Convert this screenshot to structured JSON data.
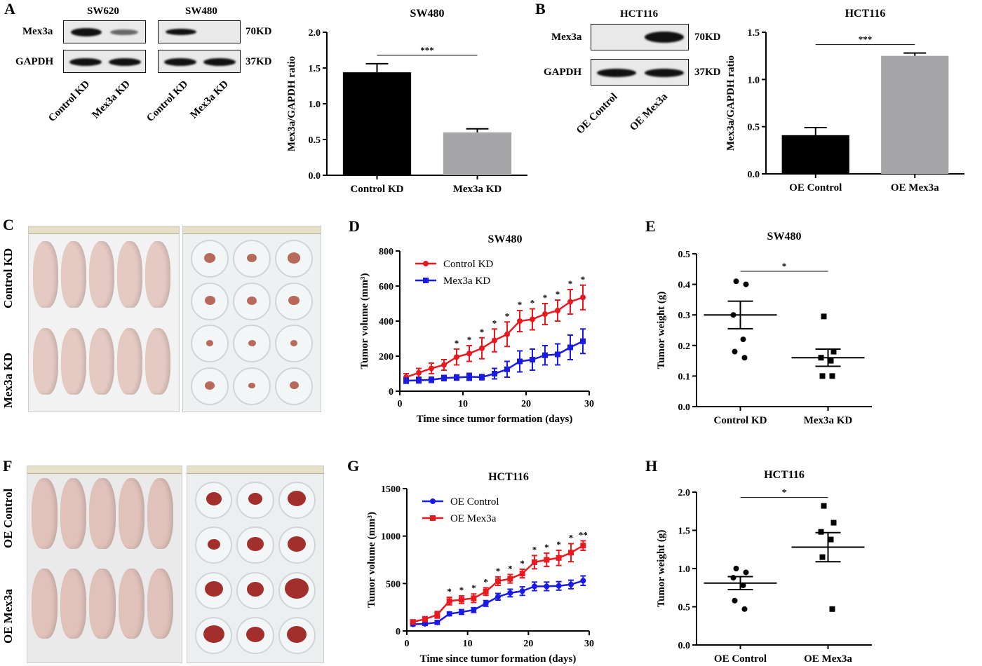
{
  "panels": {
    "A": {
      "label": "A",
      "blot": {
        "groups": [
          "SW620",
          "SW480"
        ],
        "rows": [
          "Mex3a",
          "GAPDH"
        ],
        "sizes": [
          "70KD",
          "37KD"
        ],
        "lanes": [
          "Control KD",
          "Mex3a KD",
          "Control KD",
          "Mex3a KD"
        ]
      },
      "chart": {
        "type": "bar",
        "title": "SW480",
        "ylabel": "Mex3a/GAPDH ratio",
        "categories": [
          "Control KD",
          "Mex3a KD"
        ],
        "values": [
          1.44,
          0.6
        ],
        "errors": [
          0.12,
          0.05
        ],
        "colors": [
          "#000000",
          "#a6a6a8"
        ],
        "ylim": [
          0,
          2.0
        ],
        "yticks": [
          "0.0",
          "0.5",
          "1.0",
          "1.5",
          "2.0"
        ],
        "sig": "***"
      }
    },
    "B": {
      "label": "B",
      "blot": {
        "groups": [
          "HCT116"
        ],
        "rows": [
          "Mex3a",
          "GAPDH"
        ],
        "sizes": [
          "70KD",
          "37KD"
        ],
        "lanes": [
          "OE Control",
          "OE Mex3a"
        ]
      },
      "chart": {
        "type": "bar",
        "title": "HCT116",
        "ylabel": "Mex3a/GAPDH ratio",
        "categories": [
          "OE Control",
          "OE Mex3a"
        ],
        "values": [
          0.41,
          1.25
        ],
        "errors": [
          0.08,
          0.03
        ],
        "colors": [
          "#000000",
          "#a6a6a8"
        ],
        "ylim": [
          0,
          1.5
        ],
        "yticks": [
          "0.0",
          "0.5",
          "1.0",
          "1.5"
        ],
        "sig": "***"
      }
    },
    "C": {
      "label": "C",
      "groups": [
        "Control KD",
        "Mex3a KD"
      ]
    },
    "D": {
      "label": "D",
      "chart": {
        "type": "line",
        "title": "SW480",
        "xlabel": "Time since tumor formation (days)",
        "ylabel": "Tumor volume (mm³)",
        "xlim": [
          0,
          30
        ],
        "xticks": [
          "0",
          "10",
          "20",
          "30"
        ],
        "ylim": [
          0,
          800
        ],
        "yticks": [
          "0",
          "200",
          "400",
          "600",
          "800"
        ],
        "x": [
          1,
          3,
          5,
          7,
          9,
          11,
          13,
          15,
          17,
          19,
          21,
          23,
          25,
          27,
          29
        ],
        "series": [
          {
            "name": "Control KD",
            "color": "#e8191f",
            "marker": "circle",
            "values": [
              80,
              105,
              130,
              150,
              195,
              215,
              245,
              290,
              325,
              400,
              410,
              440,
              460,
              510,
              535
            ],
            "errors": [
              20,
              25,
              30,
              30,
              45,
              45,
              60,
              65,
              70,
              60,
              60,
              60,
              60,
              70,
              70
            ]
          },
          {
            "name": "Mex3a KD",
            "color": "#1a1ae6",
            "marker": "square",
            "values": [
              60,
              62,
              65,
              75,
              78,
              82,
              80,
              100,
              125,
              170,
              180,
              205,
              210,
              250,
              285
            ],
            "errors": [
              15,
              15,
              15,
              15,
              15,
              20,
              15,
              30,
              45,
              60,
              60,
              55,
              60,
              70,
              70
            ]
          }
        ],
        "stars": [
          "",
          "",
          "",
          "",
          "*",
          "*",
          "*",
          "*",
          "*",
          "*",
          "*",
          "*",
          "*",
          "*",
          "*"
        ]
      }
    },
    "E": {
      "label": "E",
      "chart": {
        "type": "scatter",
        "title": "SW480",
        "ylabel": "Tumor weight (g)",
        "categories": [
          "Control KD",
          "Mex3a KD"
        ],
        "ylim": [
          0,
          0.5
        ],
        "yticks": [
          "0.0",
          "0.1",
          "0.2",
          "0.3",
          "0.4",
          "0.5"
        ],
        "groups": [
          {
            "marker": "circle",
            "points": [
              0.41,
              0.4,
              0.3,
              0.22,
              0.18,
              0.16
            ],
            "mean": 0.3,
            "sem": 0.045
          },
          {
            "marker": "square",
            "points": [
              0.295,
              0.18,
              0.16,
              0.15,
              0.1,
              0.1
            ],
            "mean": 0.16,
            "sem": 0.028
          }
        ],
        "sig": "*"
      }
    },
    "F": {
      "label": "F",
      "groups": [
        "OE Control",
        "OE Mex3a"
      ]
    },
    "G": {
      "label": "G",
      "chart": {
        "type": "line",
        "title": "HCT116",
        "xlabel": "Time since tumor formation (days)",
        "ylabel": "Tumor volume (mm³)",
        "xlim": [
          0,
          30
        ],
        "xticks": [
          "0",
          "10",
          "20",
          "30"
        ],
        "ylim": [
          0,
          1500
        ],
        "yticks": [
          "0",
          "500",
          "1000",
          "1500"
        ],
        "x": [
          1,
          3,
          5,
          7,
          9,
          11,
          13,
          15,
          17,
          19,
          21,
          23,
          25,
          27,
          29
        ],
        "series": [
          {
            "name": "OE Control",
            "color": "#1a1ae6",
            "marker": "circle",
            "values": [
              70,
              75,
              90,
              180,
              200,
              220,
              290,
              360,
              400,
              420,
              470,
              470,
              475,
              490,
              530
            ],
            "errors": [
              15,
              15,
              20,
              20,
              25,
              25,
              30,
              35,
              40,
              45,
              45,
              45,
              45,
              45,
              50
            ]
          },
          {
            "name": "OE Mex3a",
            "color": "#e8191f",
            "marker": "square",
            "values": [
              95,
              125,
              170,
              315,
              330,
              345,
              415,
              525,
              550,
              605,
              725,
              750,
              770,
              825,
              900
            ],
            "errors": [
              20,
              25,
              35,
              40,
              40,
              45,
              40,
              45,
              45,
              45,
              70,
              70,
              80,
              95,
              50
            ]
          }
        ],
        "stars": [
          "",
          "",
          "",
          "*",
          "*",
          "*",
          "*",
          "*",
          "*",
          "*",
          "*",
          "*",
          "*",
          "*",
          "**"
        ]
      }
    },
    "H": {
      "label": "H",
      "chart": {
        "type": "scatter",
        "title": "HCT116",
        "ylabel": "Tumor weight (g)",
        "categories": [
          "OE Control",
          "OE Mex3a"
        ],
        "ylim": [
          0,
          2.0
        ],
        "yticks": [
          "0.0",
          "0.5",
          "1.0",
          "1.5",
          "2.0"
        ],
        "groups": [
          {
            "marker": "circle",
            "points": [
              1.0,
              0.95,
              0.88,
              0.78,
              0.58,
              0.47
            ],
            "mean": 0.81,
            "sem": 0.085
          },
          {
            "marker": "square",
            "points": [
              1.82,
              1.6,
              1.48,
              1.38,
              1.15,
              0.47
            ],
            "mean": 1.28,
            "sem": 0.19
          }
        ],
        "sig": "*"
      }
    }
  },
  "chart_data": [
    {
      "type": "bar",
      "title": "SW480",
      "ylabel": "Mex3a/GAPDH ratio",
      "categories": [
        "Control KD",
        "Mex3a KD"
      ],
      "values": [
        1.44,
        0.6
      ],
      "ylim": [
        0,
        2.0
      ]
    },
    {
      "type": "bar",
      "title": "HCT116",
      "ylabel": "Mex3a/GAPDH ratio",
      "categories": [
        "OE Control",
        "OE Mex3a"
      ],
      "values": [
        0.41,
        1.25
      ],
      "ylim": [
        0,
        1.5
      ]
    },
    {
      "type": "line",
      "title": "SW480",
      "xlabel": "Time since tumor formation (days)",
      "ylabel": "Tumor volume (mm³)",
      "x": [
        1,
        3,
        5,
        7,
        9,
        11,
        13,
        15,
        17,
        19,
        21,
        23,
        25,
        27,
        29
      ],
      "series": [
        {
          "name": "Control KD",
          "values": [
            80,
            105,
            130,
            150,
            195,
            215,
            245,
            290,
            325,
            400,
            410,
            440,
            460,
            510,
            535
          ]
        },
        {
          "name": "Mex3a KD",
          "values": [
            60,
            62,
            65,
            75,
            78,
            82,
            80,
            100,
            125,
            170,
            180,
            205,
            210,
            250,
            285
          ]
        }
      ],
      "ylim": [
        0,
        800
      ]
    },
    {
      "type": "scatter",
      "title": "SW480",
      "ylabel": "Tumor weight (g)",
      "categories": [
        "Control KD",
        "Mex3a KD"
      ],
      "ylim": [
        0,
        0.5
      ]
    },
    {
      "type": "line",
      "title": "HCT116",
      "xlabel": "Time since tumor formation (days)",
      "ylabel": "Tumor volume (mm³)",
      "x": [
        1,
        3,
        5,
        7,
        9,
        11,
        13,
        15,
        17,
        19,
        21,
        23,
        25,
        27,
        29
      ],
      "series": [
        {
          "name": "OE Control",
          "values": [
            70,
            75,
            90,
            180,
            200,
            220,
            290,
            360,
            400,
            420,
            470,
            470,
            475,
            490,
            530
          ]
        },
        {
          "name": "OE Mex3a",
          "values": [
            95,
            125,
            170,
            315,
            330,
            345,
            415,
            525,
            550,
            605,
            725,
            750,
            770,
            825,
            900
          ]
        }
      ],
      "ylim": [
        0,
        1500
      ]
    },
    {
      "type": "scatter",
      "title": "HCT116",
      "ylabel": "Tumor weight (g)",
      "categories": [
        "OE Control",
        "OE Mex3a"
      ],
      "ylim": [
        0,
        2.0
      ]
    }
  ]
}
